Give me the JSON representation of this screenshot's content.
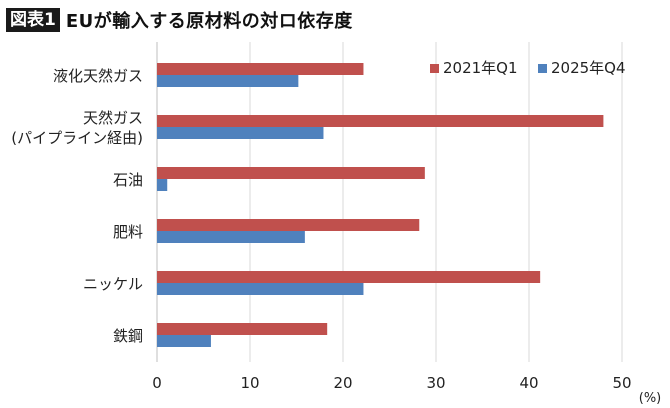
{
  "header": {
    "figure_label": "図表1",
    "title": "EUが輸入する原材料の対ロ依存度"
  },
  "chart_data": {
    "type": "bar",
    "orientation": "horizontal",
    "title": "EUが輸入する原材料の対ロ依存度",
    "xlabel": "(%)",
    "ylabel": "",
    "xlim": [
      0,
      50
    ],
    "xticks": [
      0,
      10,
      20,
      30,
      40,
      50
    ],
    "grid": "vertical",
    "legend_position": "top-right",
    "categories": [
      [
        "液化天然ガス"
      ],
      [
        "天然ガス",
        "(パイプライン経由)"
      ],
      [
        "石油"
      ],
      [
        "肥料"
      ],
      [
        "ニッケル"
      ],
      [
        "鉄鋼"
      ]
    ],
    "series": [
      {
        "name": "2021年Q1",
        "color": "#c0504d",
        "values": [
          22.2,
          48.0,
          28.8,
          28.2,
          41.2,
          18.3
        ]
      },
      {
        "name": "2025年Q4",
        "color": "#4f81bd",
        "values": [
          15.2,
          17.9,
          1.1,
          15.9,
          22.2,
          5.8
        ]
      }
    ]
  }
}
